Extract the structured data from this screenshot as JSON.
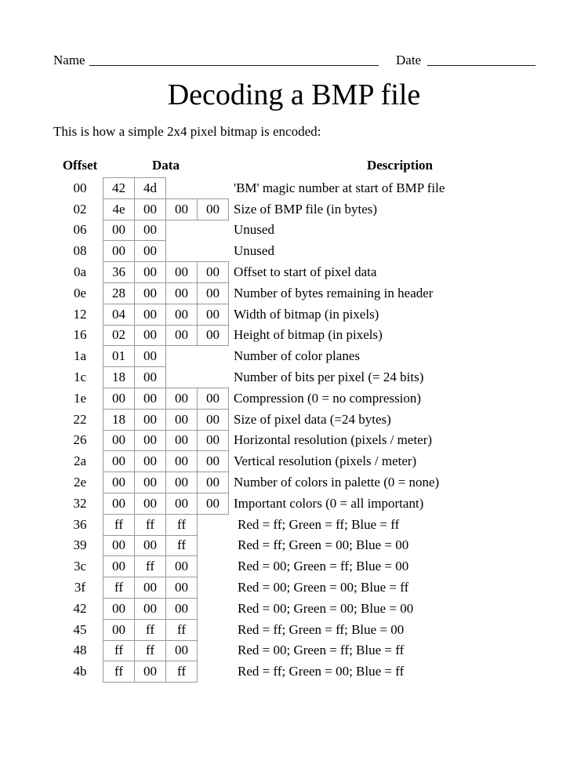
{
  "page": {
    "name_label": "Name",
    "date_label": "Date",
    "title": "Decoding a BMP file",
    "subtitle": "This is how a simple 2x4 pixel bitmap is encoded:"
  },
  "table": {
    "border_color": "#999999",
    "headers": {
      "offset": "Offset",
      "data": "Data",
      "description": "Description"
    },
    "rows": [
      {
        "offset": "00",
        "bytes": [
          "42",
          "4d"
        ],
        "description": "'BM' magic number at start of BMP file",
        "pixel_row": false
      },
      {
        "offset": "02",
        "bytes": [
          "4e",
          "00",
          "00",
          "00"
        ],
        "description": "Size of BMP file (in bytes)",
        "pixel_row": false
      },
      {
        "offset": "06",
        "bytes": [
          "00",
          "00"
        ],
        "description": "Unused",
        "pixel_row": false
      },
      {
        "offset": "08",
        "bytes": [
          "00",
          "00"
        ],
        "description": "Unused",
        "pixel_row": false
      },
      {
        "offset": "0a",
        "bytes": [
          "36",
          "00",
          "00",
          "00"
        ],
        "description": "Offset to start of pixel data",
        "pixel_row": false
      },
      {
        "offset": "0e",
        "bytes": [
          "28",
          "00",
          "00",
          "00"
        ],
        "description": "Number of bytes remaining in header",
        "pixel_row": false
      },
      {
        "offset": "12",
        "bytes": [
          "04",
          "00",
          "00",
          "00"
        ],
        "description": "Width of bitmap (in pixels)",
        "pixel_row": false
      },
      {
        "offset": "16",
        "bytes": [
          "02",
          "00",
          "00",
          "00"
        ],
        "description": "Height of bitmap (in pixels)",
        "pixel_row": false
      },
      {
        "offset": "1a",
        "bytes": [
          "01",
          "00"
        ],
        "description": "Number of color planes",
        "pixel_row": false
      },
      {
        "offset": "1c",
        "bytes": [
          "18",
          "00"
        ],
        "description": "Number of bits per pixel (= 24 bits)",
        "pixel_row": false
      },
      {
        "offset": "1e",
        "bytes": [
          "00",
          "00",
          "00",
          "00"
        ],
        "description": "Compression (0 = no compression)",
        "pixel_row": false
      },
      {
        "offset": "22",
        "bytes": [
          "18",
          "00",
          "00",
          "00"
        ],
        "description": "Size of pixel data (=24 bytes)",
        "pixel_row": false
      },
      {
        "offset": "26",
        "bytes": [
          "00",
          "00",
          "00",
          "00"
        ],
        "description": "Horizontal resolution (pixels / meter)",
        "pixel_row": false
      },
      {
        "offset": "2a",
        "bytes": [
          "00",
          "00",
          "00",
          "00"
        ],
        "description": "Vertical resolution (pixels / meter)",
        "pixel_row": false
      },
      {
        "offset": "2e",
        "bytes": [
          "00",
          "00",
          "00",
          "00"
        ],
        "description": "Number of colors in palette (0 = none)",
        "pixel_row": false
      },
      {
        "offset": "32",
        "bytes": [
          "00",
          "00",
          "00",
          "00"
        ],
        "description": "Important colors (0 = all important)",
        "pixel_row": false
      },
      {
        "offset": "36",
        "bytes": [
          "ff",
          "ff",
          "ff"
        ],
        "description": "Red = ff; Green = ff; Blue = ff",
        "pixel_row": true
      },
      {
        "offset": "39",
        "bytes": [
          "00",
          "00",
          "ff"
        ],
        "description": "Red = ff; Green = 00; Blue = 00",
        "pixel_row": true
      },
      {
        "offset": "3c",
        "bytes": [
          "00",
          "ff",
          "00"
        ],
        "description": "Red = 00; Green = ff; Blue = 00",
        "pixel_row": true
      },
      {
        "offset": "3f",
        "bytes": [
          "ff",
          "00",
          "00"
        ],
        "description": "Red = 00; Green = 00; Blue = ff",
        "pixel_row": true
      },
      {
        "offset": "42",
        "bytes": [
          "00",
          "00",
          "00"
        ],
        "description": "Red = 00; Green = 00; Blue = 00",
        "pixel_row": true
      },
      {
        "offset": "45",
        "bytes": [
          "00",
          "ff",
          "ff"
        ],
        "description": "Red = ff; Green = ff; Blue = 00",
        "pixel_row": true
      },
      {
        "offset": "48",
        "bytes": [
          "ff",
          "ff",
          "00"
        ],
        "description": "Red = 00; Green = ff; Blue = ff",
        "pixel_row": true
      },
      {
        "offset": "4b",
        "bytes": [
          "ff",
          "00",
          "ff"
        ],
        "description": "Red = ff; Green = 00; Blue = ff",
        "pixel_row": true
      }
    ]
  }
}
